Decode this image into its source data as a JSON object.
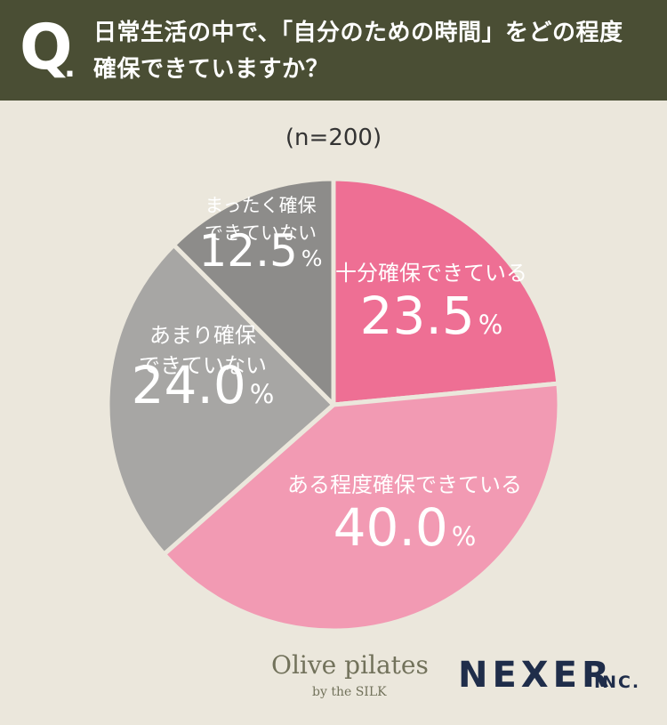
{
  "header": {
    "q_mark": "Q",
    "q_dot": ".",
    "question_line1": "日常生活の中で、「自分のための時間」をどの程度",
    "question_line2": "確保できていますか？"
  },
  "sample_size": "(n=200)",
  "chart_data": {
    "type": "pie",
    "slices": [
      {
        "label_lines": [
          "十分確保できている"
        ],
        "value": 23.5,
        "value_text": "23.5",
        "color": "#ee6f94"
      },
      {
        "label_lines": [
          "ある程度確保できている"
        ],
        "value": 40.0,
        "value_text": "40.0",
        "color": "#f29ab3"
      },
      {
        "label_lines": [
          "あまり確保",
          "できていない"
        ],
        "value": 24.0,
        "value_text": "24.0",
        "color": "#a7a6a4"
      },
      {
        "label_lines": [
          "まったく確保",
          "できていない"
        ],
        "value": 12.5,
        "value_text": "12.5",
        "color": "#8d8c8a"
      }
    ],
    "unit": "%",
    "start": "top",
    "direction": "clockwise"
  },
  "logos": {
    "olive": "Olive pilates",
    "olive_sub": "by the SILK",
    "nexer": "NEXER",
    "nexer_inc": "INC."
  }
}
